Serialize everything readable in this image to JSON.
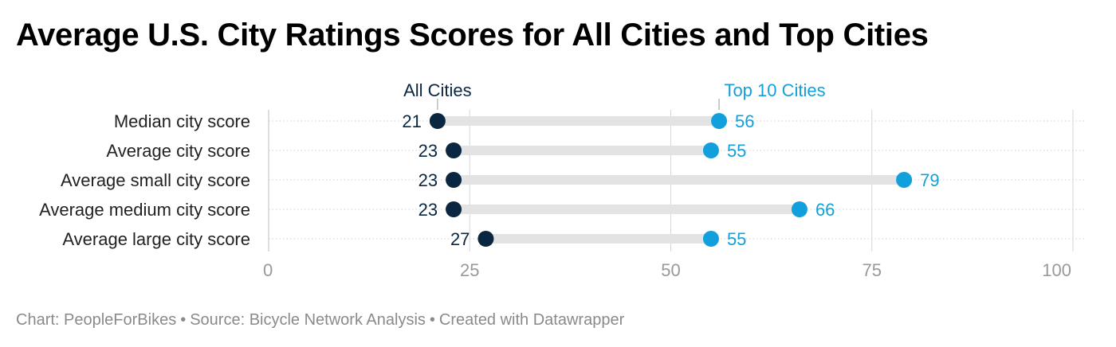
{
  "title": "Average U.S. City Ratings Scores for All Cities and Top Cities",
  "footer": {
    "chart_credit": "Chart: PeopleForBikes",
    "separator": "•",
    "source": "Source: Bicycle Network Analysis",
    "created": "Created with Datawrapper"
  },
  "colors": {
    "all_cities": "#0b2641",
    "top_cities": "#12a0dc",
    "range_bar": "#e3e3e3",
    "axis_text": "#999999",
    "gridline": "#d6d6d6"
  },
  "chart_data": {
    "type": "dot-range",
    "title": "Average U.S. City Ratings Scores for All Cities and Top Cities",
    "categories": [
      "Median city score",
      "Average city score",
      "Average small city score",
      "Average medium city score",
      "Average large city score"
    ],
    "series": [
      {
        "name": "All Cities",
        "values": [
          21,
          23,
          23,
          23,
          27
        ]
      },
      {
        "name": "Top 10 Cities",
        "values": [
          56,
          55,
          79,
          66,
          55
        ]
      }
    ],
    "xlim": [
      0,
      100
    ],
    "xticks": [
      0,
      25,
      50,
      75,
      100
    ],
    "xlabel": "",
    "ylabel": "",
    "grid": true,
    "legend": "inline-labels above first row"
  }
}
